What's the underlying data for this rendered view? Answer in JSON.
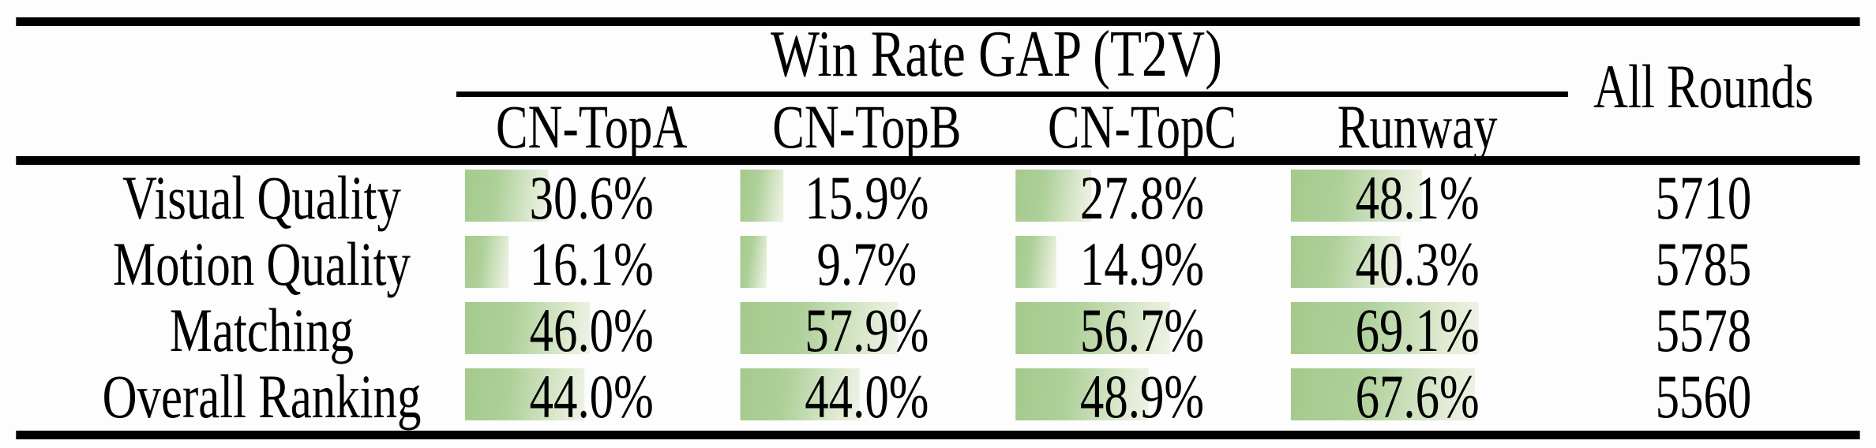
{
  "table": {
    "group_header": "Win Rate GAP (T2V)",
    "all_rounds_header": "All Rounds",
    "columns": [
      "CN-TopA",
      "CN-TopB",
      "CN-TopC",
      "Runway"
    ],
    "rows": [
      {
        "label": "Visual Quality",
        "cells": [
          {
            "text": "30.6%",
            "value": 30.6
          },
          {
            "text": "15.9%",
            "value": 15.9
          },
          {
            "text": "27.8%",
            "value": 27.8
          },
          {
            "text": "48.1%",
            "value": 48.1
          }
        ],
        "all_rounds": "5710"
      },
      {
        "label": "Motion Quality",
        "cells": [
          {
            "text": "16.1%",
            "value": 16.1
          },
          {
            "text": "9.7%",
            "value": 9.7
          },
          {
            "text": "14.9%",
            "value": 14.9
          },
          {
            "text": "40.3%",
            "value": 40.3
          }
        ],
        "all_rounds": "5785"
      },
      {
        "label": "Matching",
        "cells": [
          {
            "text": "46.0%",
            "value": 46.0
          },
          {
            "text": "57.9%",
            "value": 57.9
          },
          {
            "text": "56.7%",
            "value": 56.7
          },
          {
            "text": "69.1%",
            "value": 69.1
          }
        ],
        "all_rounds": "5578"
      },
      {
        "label": "Overall Ranking",
        "cells": [
          {
            "text": "44.0%",
            "value": 44.0
          },
          {
            "text": "44.0%",
            "value": 44.0
          },
          {
            "text": "48.9%",
            "value": 48.9
          },
          {
            "text": "67.6%",
            "value": 67.6
          }
        ],
        "all_rounds": "5560"
      }
    ]
  },
  "chart_data": {
    "type": "table",
    "title": "Win Rate GAP (T2V)",
    "categories": [
      "Visual Quality",
      "Motion Quality",
      "Matching",
      "Overall Ranking"
    ],
    "series": [
      {
        "name": "CN-TopA",
        "values": [
          30.6,
          16.1,
          46.0,
          44.0
        ]
      },
      {
        "name": "CN-TopB",
        "values": [
          15.9,
          9.7,
          57.9,
          44.0
        ]
      },
      {
        "name": "CN-TopC",
        "values": [
          27.8,
          14.9,
          56.7,
          48.9
        ]
      },
      {
        "name": "Runway",
        "values": [
          48.1,
          40.3,
          69.1,
          67.6
        ]
      }
    ],
    "extra_column": {
      "name": "All Rounds",
      "values": [
        5710,
        5785,
        5578,
        5560
      ]
    },
    "unit": "%",
    "layout_hints": "in-cell horizontal bars, width proportional to percent, green gradient fading right"
  },
  "colors": {
    "bar_green": "#a5c98c",
    "bar_fade": "#eef3e7",
    "rule": "#000000",
    "text": "#000000",
    "background": "#fdfdfd"
  }
}
